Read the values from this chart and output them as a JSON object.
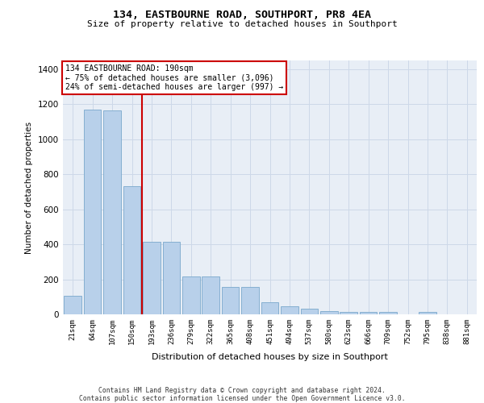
{
  "title": "134, EASTBOURNE ROAD, SOUTHPORT, PR8 4EA",
  "subtitle": "Size of property relative to detached houses in Southport",
  "xlabel": "Distribution of detached houses by size in Southport",
  "ylabel": "Number of detached properties",
  "categories": [
    "21sqm",
    "64sqm",
    "107sqm",
    "150sqm",
    "193sqm",
    "236sqm",
    "279sqm",
    "322sqm",
    "365sqm",
    "408sqm",
    "451sqm",
    "494sqm",
    "537sqm",
    "580sqm",
    "623sqm",
    "666sqm",
    "709sqm",
    "752sqm",
    "795sqm",
    "838sqm",
    "881sqm"
  ],
  "values": [
    108,
    1170,
    1165,
    730,
    415,
    415,
    215,
    215,
    155,
    155,
    68,
    48,
    30,
    20,
    15,
    12,
    12,
    0,
    15,
    0,
    0
  ],
  "bar_color": "#b8d0ea",
  "bar_edge_color": "#7aa8cc",
  "grid_color": "#cdd8e8",
  "background_color": "#e8eef6",
  "vline_color": "#cc0000",
  "vline_position": 3.5,
  "annotation_line1": "134 EASTBOURNE ROAD: 190sqm",
  "annotation_line2": "← 75% of detached houses are smaller (3,096)",
  "annotation_line3": "24% of semi-detached houses are larger (997) →",
  "annotation_box_edgecolor": "#cc0000",
  "ylim": [
    0,
    1450
  ],
  "yticks": [
    0,
    200,
    400,
    600,
    800,
    1000,
    1200,
    1400
  ],
  "footer_line1": "Contains HM Land Registry data © Crown copyright and database right 2024.",
  "footer_line2": "Contains public sector information licensed under the Open Government Licence v3.0."
}
